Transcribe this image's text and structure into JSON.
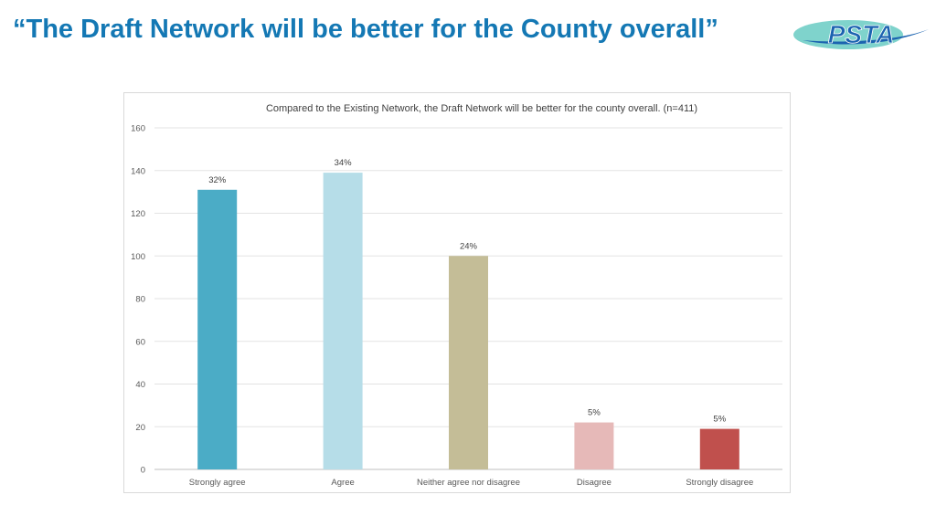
{
  "slide": {
    "title": "“The Draft Network will be better for the County overall”",
    "logo_text": "PSTA"
  },
  "colors": {
    "title": "#1478b4",
    "logo_teal": "#7fd3cc",
    "logo_blue": "#1b63b0"
  },
  "chart_data": {
    "type": "bar",
    "title": "Compared to the Existing Network, the Draft Network will be better for the county overall. (n=411)",
    "categories": [
      "Strongly agree",
      "Agree",
      "Neither agree nor disagree",
      "Disagree",
      "Strongly disagree"
    ],
    "values": [
      131,
      139,
      100,
      22,
      19
    ],
    "data_labels": [
      "32%",
      "34%",
      "24%",
      "5%",
      "5%"
    ],
    "bar_colors": [
      "#4bacc6",
      "#b6dde8",
      "#c4bd97",
      "#e6b9b8",
      "#c0504d"
    ],
    "ylim": [
      0,
      160
    ],
    "yticks": [
      0,
      20,
      40,
      60,
      80,
      100,
      120,
      140,
      160
    ],
    "grid": true,
    "legend": "none",
    "xlabel": "",
    "ylabel": ""
  }
}
